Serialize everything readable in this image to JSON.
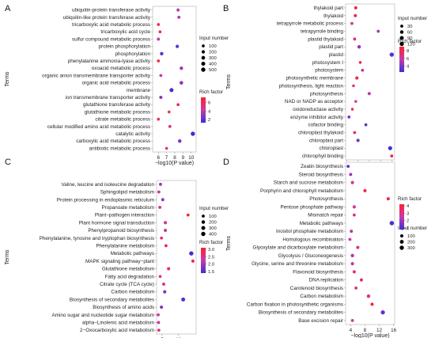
{
  "theme": {
    "low_color": "#3b2fd8",
    "mid_color": "#c83aa8",
    "high_color": "#ff2030"
  },
  "chart_data": [
    {
      "panel": "A",
      "type": "scatter",
      "xlabel": "−log10(P value)",
      "ylabel": "Terms",
      "xlim": [
        5.3,
        10.6
      ],
      "xticks": [
        6,
        7,
        8,
        9,
        10
      ],
      "size_legend": {
        "title": "Input number",
        "values": [
          100,
          200,
          300,
          400,
          500
        ],
        "labels": [
          "100",
          "200",
          "300",
          "400",
          "500"
        ]
      },
      "color_legend": {
        "title": "Rich factor",
        "range": [
          1.3,
          7.2
        ],
        "ticks": [
          2,
          4,
          6
        ],
        "tick_labels": [
          "2",
          "4",
          "6"
        ]
      },
      "terms": [
        "ubiquitin-protein transferase activity",
        "ubiquitin-like protein transferase activity",
        "tricarboxylic acid metabolic process",
        "tricarboxylic acid cycle",
        "sulfur compound metabolic process",
        "protein phosphorylation",
        "phosphorylation",
        "phenylalanine ammonia-lyase activity",
        "oxoacid metabolic process",
        "organic anion transmembrane transporter activity",
        "organic acid metabolic process",
        "membrane",
        "ion transmembrane transporter activity",
        "glutathione transferase activity",
        "glutathione metabolic process",
        "citrate metabolic process",
        "cellular modified amino acid metabolic process",
        "catalytic activity",
        "carboxylic acid metabolic process",
        "antibiotic metabolic process"
      ],
      "x": [
        8.4,
        8.5,
        6.0,
        6.2,
        6.0,
        8.3,
        6.4,
        6.0,
        8.8,
        6.3,
        8.8,
        7.6,
        6.3,
        8.4,
        7.3,
        6.0,
        7.4,
        10.2,
        8.6,
        7.0
      ],
      "size": [
        150,
        150,
        100,
        100,
        140,
        200,
        230,
        100,
        240,
        120,
        280,
        400,
        170,
        110,
        100,
        100,
        130,
        500,
        270,
        100
      ],
      "rich": [
        4,
        4,
        6.5,
        6.5,
        4,
        2,
        2,
        7,
        3.5,
        4.5,
        3,
        1.5,
        3,
        6.5,
        6,
        6.5,
        5,
        1.3,
        3,
        5.5
      ]
    },
    {
      "panel": "B",
      "type": "scatter",
      "xlabel": "−log10(P value)",
      "ylabel": "Terms",
      "xlim": [
        4.5,
        26.3
      ],
      "xticks": [
        5,
        10,
        15,
        20,
        25
      ],
      "size_legend": {
        "title": "Input number",
        "values": [
          30,
          60,
          90,
          120
        ],
        "labels": [
          "30",
          "60",
          "90",
          "120"
        ]
      },
      "color_legend": {
        "title": "Rich factor",
        "range": [
          2.5,
          9
        ],
        "ticks": [
          4,
          6,
          8
        ],
        "tick_labels": [
          "4",
          "6",
          "8"
        ]
      },
      "terms": [
        "thylakoid part",
        "thylakoid",
        "tetrapyrrole metabolic process",
        "tetrapyrrole binding",
        "plastid thylakoid",
        "plastid part",
        "plastid",
        "photosystem I",
        "photosystem",
        "photosynthetic membrane",
        "photosynthesis, light reaction",
        "photosynthesis",
        "NAD or NADP as acceptor",
        "oxidoreductase activity",
        "enzyme inhibitor activity",
        "cofactor binding",
        "chloroplast thylakoid",
        "chloroplast part",
        "chloroplast",
        "chlorophyll binding"
      ],
      "x": [
        9.0,
        8.8,
        7.3,
        19.0,
        8.5,
        10.5,
        25.0,
        11.0,
        12.0,
        9.5,
        8.0,
        15.0,
        9.0,
        7.5,
        6.0,
        13.5,
        8.5,
        10.0,
        24.3,
        25.0
      ],
      "size": [
        40,
        40,
        30,
        30,
        30,
        60,
        120,
        20,
        30,
        40,
        20,
        40,
        20,
        20,
        30,
        30,
        30,
        50,
        100,
        30
      ],
      "rich": [
        8,
        8,
        6.5,
        5,
        7.5,
        4.5,
        3,
        9,
        6.5,
        8,
        7,
        5.5,
        6,
        8,
        4,
        3.5,
        7,
        4,
        2.5,
        8
      ]
    },
    {
      "panel": "C",
      "type": "scatter",
      "xlabel": "−log10(P value)",
      "ylabel": "Terms",
      "xlim": [
        3.3,
        15.5
      ],
      "xticks": [
        5,
        10
      ],
      "size_legend": {
        "title": "Input number",
        "values": [
          100,
          200,
          300,
          400
        ],
        "labels": [
          "100",
          "200",
          "300",
          "400"
        ]
      },
      "color_legend": {
        "title": "Rich factor",
        "range": [
          1.4,
          3.1
        ],
        "ticks": [
          1.5,
          2.0,
          2.5,
          3.0
        ],
        "tick_labels": [
          "1.5",
          "2.0",
          "2.5",
          "3.0"
        ]
      },
      "terms": [
        "Valine, leucine and isoleucine degradation",
        "Sphingolipid metabolism",
        "Protein processing in endoplasmic reticulum",
        "Propanoate metabolism",
        "Plant−pathogen interaction",
        "Plant hormone signal transduction",
        "Phenylpropanoid biosynthesis",
        "Phenylalanine, tyrosine and tryptophan biosynthesis",
        "Phenylalanine metabolism",
        "Metabolic pathways",
        "MAPK signaling pathway−plant",
        "Glutathione metabolism",
        "Fatty acid degradation",
        "Citrate cycle (TCA cycle)",
        "Carbon metabolism",
        "Biosynthesis of secondary metabolites",
        "Biosynthesis of amino acids",
        "Amino sugar and nucleotide sugar metabolism",
        "alpha−Linolenic acid metabolism",
        "2−Oxocarboxylic acid metabolism"
      ],
      "x": [
        4.5,
        4.0,
        5.2,
        4.3,
        13.0,
        6.0,
        6.0,
        4.8,
        6.2,
        14.0,
        14.5,
        7.0,
        4.4,
        5.5,
        5.8,
        11.5,
        4.8,
        3.8,
        3.9,
        4.0
      ],
      "size": [
        110,
        100,
        120,
        100,
        100,
        140,
        140,
        100,
        100,
        400,
        120,
        130,
        100,
        110,
        150,
        300,
        150,
        100,
        100,
        100
      ],
      "rich": [
        2.0,
        2.4,
        1.9,
        2.5,
        3.0,
        2.4,
        2.2,
        2.6,
        2.9,
        1.4,
        3.0,
        2.8,
        2.3,
        2.6,
        1.8,
        1.5,
        1.8,
        2.2,
        2.4,
        2.6
      ]
    },
    {
      "panel": "D",
      "type": "scatter",
      "xlabel": "−log10(P value)",
      "ylabel": "Terms",
      "xlim": [
        2.6,
        16.3
      ],
      "xticks": [
        4,
        8,
        12,
        16
      ],
      "size_legend": {
        "title": "Input number",
        "values": [
          100,
          200,
          300
        ],
        "labels": [
          "100",
          "200",
          "300"
        ]
      },
      "color_legend": {
        "title": "Rich factor",
        "range": [
          0.8,
          4.2
        ],
        "ticks": [
          1,
          2,
          3,
          4
        ],
        "tick_labels": [
          "1",
          "2",
          "3",
          "4"
        ]
      },
      "terms": [
        "Zeatin biosynthesis",
        "Steroid biosynthesis",
        "Starch and sucrose metabolism",
        "Porphyrin and chlorophyll metabolism",
        "Photosynthesis",
        "Pentose phosphate pathway",
        "Mismatch repair",
        "Metabolic pathways",
        "Inositol phosphate metabolism",
        "Homologous recombination",
        "Glyoxylate and dicarboxylate metabolism",
        "Glycolysis / Gluconeogenesis",
        "Glycine, serine and threonine metabolism",
        "Flavonoid biosynthesis",
        "DNA replication",
        "Carotenoid biosynthesis",
        "Carbon metabolism",
        "Carbon fixation in photosynthetic organisms",
        "Biosynthesis of secondary metabolites",
        "Base excision repair"
      ],
      "x": [
        3.3,
        4.0,
        4.5,
        8.0,
        14.5,
        5.0,
        5.0,
        15.5,
        4.2,
        3.8,
        6.0,
        4.5,
        4.5,
        5.0,
        7.0,
        5.5,
        9.0,
        10.0,
        13.0,
        4.5
      ],
      "size": [
        80,
        90,
        110,
        110,
        100,
        110,
        80,
        330,
        90,
        80,
        100,
        140,
        110,
        90,
        90,
        80,
        150,
        100,
        270,
        80
      ],
      "rich": [
        1.2,
        2.0,
        2.8,
        3.8,
        4.0,
        2.8,
        3.0,
        1.0,
        2.2,
        2.5,
        3.0,
        2.2,
        2.4,
        3.3,
        3.5,
        3.2,
        2.8,
        4.0,
        1.3,
        2.6
      ]
    }
  ]
}
